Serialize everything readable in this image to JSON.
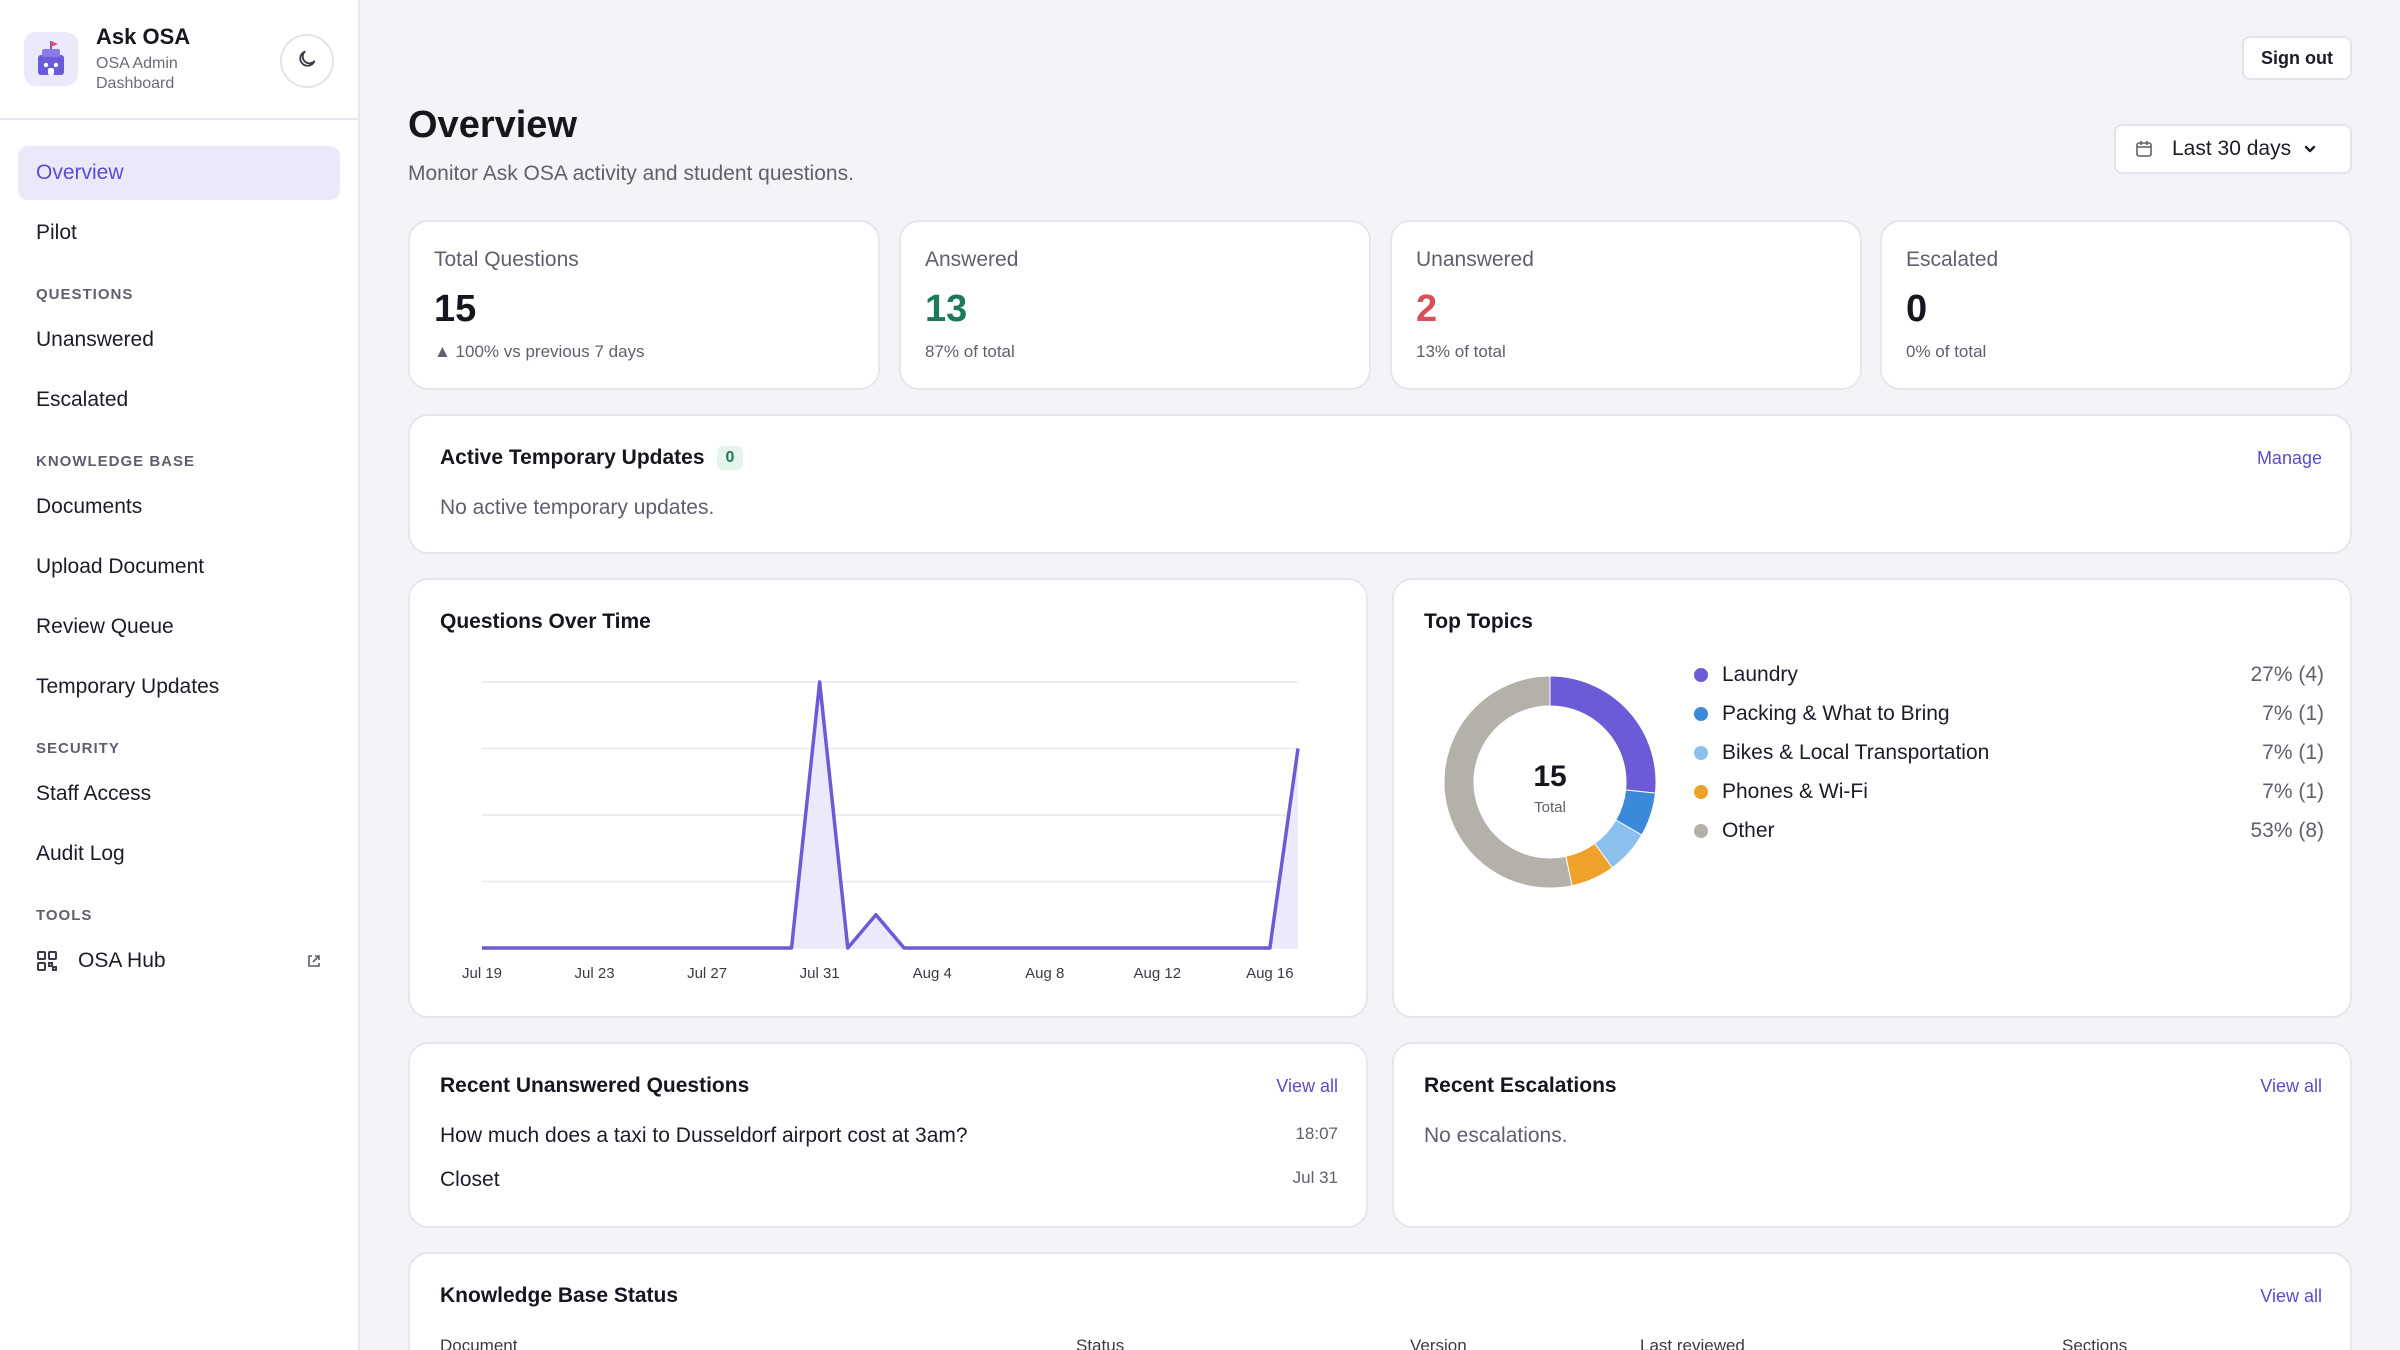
{
  "app": {
    "title": "Ask OSA",
    "subtitle": "OSA Admin Dashboard"
  },
  "sidebar": {
    "items_top": [
      {
        "label": "Overview",
        "active": true
      },
      {
        "label": "Pilot",
        "active": false
      }
    ],
    "sections": [
      {
        "title": "QUESTIONS",
        "items": [
          "Unanswered",
          "Escalated"
        ]
      },
      {
        "title": "KNOWLEDGE BASE",
        "items": [
          "Documents",
          "Upload Document",
          "Review Queue",
          "Temporary Updates"
        ]
      },
      {
        "title": "SECURITY",
        "items": [
          "Staff Access",
          "Audit Log"
        ]
      },
      {
        "title": "TOOLS",
        "items": [
          "OSA Hub"
        ]
      }
    ]
  },
  "header": {
    "sign_out": "Sign out",
    "title": "Overview",
    "subtitle": "Monitor Ask OSA activity and student questions.",
    "range": "Last 30 days"
  },
  "stats": [
    {
      "label": "Total Questions",
      "value": "15",
      "foot": "▲ 100% vs previous 7 days"
    },
    {
      "label": "Answered",
      "value": "13",
      "foot": "87% of total"
    },
    {
      "label": "Unanswered",
      "value": "2",
      "foot": "13% of total"
    },
    {
      "label": "Escalated",
      "value": "0",
      "foot": "0% of total"
    }
  ],
  "temp_updates": {
    "title": "Active Temporary Updates",
    "count": "0",
    "link": "Manage",
    "empty": "No active temporary updates."
  },
  "questions_chart": {
    "title": "Questions Over Time"
  },
  "chart_data": [
    {
      "type": "area",
      "title": "Questions Over Time",
      "x": [
        "Jul 19",
        "Jul 20",
        "Jul 21",
        "Jul 22",
        "Jul 23",
        "Jul 24",
        "Jul 25",
        "Jul 26",
        "Jul 27",
        "Jul 28",
        "Jul 29",
        "Jul 30",
        "Jul 31",
        "Aug 1",
        "Aug 2",
        "Aug 3",
        "Aug 4",
        "Aug 5",
        "Aug 6",
        "Aug 7",
        "Aug 8",
        "Aug 9",
        "Aug 10",
        "Aug 11",
        "Aug 12",
        "Aug 13",
        "Aug 14",
        "Aug 15",
        "Aug 16",
        "Aug 17"
      ],
      "x_tick_labels": [
        "Jul 19",
        "Jul 23",
        "Jul 27",
        "Jul 31",
        "Aug 4",
        "Aug 8",
        "Aug 12",
        "Aug 16"
      ],
      "values": [
        0,
        0,
        0,
        0,
        0,
        0,
        0,
        0,
        0,
        0,
        0,
        0,
        8,
        0,
        1,
        0,
        0,
        0,
        0,
        0,
        0,
        0,
        0,
        0,
        0,
        0,
        0,
        0,
        0,
        6
      ],
      "ylim": [
        0,
        8
      ],
      "grid": true,
      "color": "#6b5bd6"
    },
    {
      "type": "pie",
      "title": "Top Topics",
      "center_value": "15",
      "center_label": "Total",
      "slices": [
        {
          "label": "Laundry",
          "value": 4,
          "display": "27% (4)",
          "color": "#6b5bd6"
        },
        {
          "label": "Packing & What to Bring",
          "value": 1,
          "display": "7% (1)",
          "color": "#3b8ad9"
        },
        {
          "label": "Bikes & Local Transportation",
          "value": 1,
          "display": "7% (1)",
          "color": "#8cc0ec"
        },
        {
          "label": "Phones & Wi-Fi",
          "value": 1,
          "display": "7% (1)",
          "color": "#eea229"
        },
        {
          "label": "Other",
          "value": 8,
          "display": "53% (8)",
          "color": "#b3b1aa"
        }
      ]
    }
  ],
  "recent_unanswered": {
    "title": "Recent Unanswered Questions",
    "link": "View all",
    "items": [
      {
        "text": "How much does a taxi to Dusseldorf airport cost at 3am?",
        "time": "18:07"
      },
      {
        "text": "Closet",
        "time": "Jul 31"
      }
    ]
  },
  "recent_escalations": {
    "title": "Recent Escalations",
    "link": "View all",
    "empty": "No escalations."
  },
  "kb_status": {
    "title": "Knowledge Base Status",
    "link": "View all",
    "columns": [
      "Document",
      "Status",
      "Version",
      "Last reviewed",
      "Sections"
    ]
  },
  "colors": {
    "accent": "#5a4bd1",
    "green": "#1d7a56",
    "red": "#d6505c"
  }
}
